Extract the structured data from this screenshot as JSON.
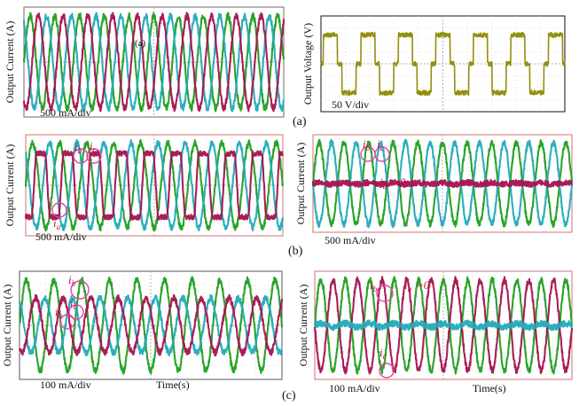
{
  "figure": {
    "labels": {
      "a": "(a)",
      "b": "(b)",
      "c": "(c)"
    },
    "ylabel_current": "Output Current (A)",
    "ylabel_voltage": "Output Voltage (V)",
    "xlabel_time": "Time(s)",
    "colors": {
      "green": "#1f9e1f",
      "cyan": "#22aab8",
      "magenta": "#a4124e",
      "olive": "#8c8a00",
      "annotation": "#c0143c",
      "circle": "#e048a8"
    }
  },
  "chart_data": [
    {
      "id": "a-current",
      "type": "line",
      "title": "",
      "ylabel": "Output Current (A)",
      "scale_label": "500 mA/div",
      "inner_label": "(a)",
      "annotations": [],
      "series": [
        {
          "name": "green",
          "color": "#1f9e1f",
          "amplitude": 1.0,
          "cycles": 10.5,
          "phase_deg": 0
        },
        {
          "name": "cyan",
          "color": "#22aab8",
          "amplitude": 1.0,
          "cycles": 10.5,
          "phase_deg": 120
        },
        {
          "name": "magenta",
          "color": "#a4124e",
          "amplitude": 1.0,
          "cycles": 10.5,
          "phase_deg": 240
        }
      ]
    },
    {
      "id": "a-voltage",
      "type": "line",
      "title": "",
      "ylabel": "Output Voltage (V)",
      "scale_label": "50 V/div",
      "annotations": [],
      "series": [
        {
          "name": "olive",
          "color": "#8c8a00",
          "shape": "quasi-square",
          "amplitude": 1.0,
          "cycles": 6.5
        }
      ]
    },
    {
      "id": "b-left",
      "type": "line",
      "title": "",
      "ylabel": "Output Current (A)",
      "scale_label": "500 mA/div",
      "annotations": [
        "i",
        "b",
        "i",
        "c",
        "i",
        "a"
      ],
      "series": [
        {
          "name": "green",
          "color": "#1f9e1f",
          "amplitude": 1.0,
          "cycles": 9.5,
          "phase_deg": 0
        },
        {
          "name": "cyan",
          "color": "#22aab8",
          "amplitude": 1.0,
          "cycles": 9.5,
          "phase_deg": 130
        },
        {
          "name": "magenta",
          "color": "#a4124e",
          "amplitude": 0.75,
          "cycles": 9.5,
          "phase_deg": 250,
          "shape": "distorted"
        }
      ]
    },
    {
      "id": "b-right",
      "type": "line",
      "title": "",
      "ylabel": "Output Current (A)",
      "scale_label": "500 mA/div",
      "annotations": [
        "i",
        "b",
        "i",
        "c",
        "i",
        "a",
        "=0"
      ],
      "series": [
        {
          "name": "green",
          "color": "#1f9e1f",
          "amplitude": 1.0,
          "cycles": 10.5,
          "phase_deg": 0
        },
        {
          "name": "cyan",
          "color": "#22aab8",
          "amplitude": 1.0,
          "cycles": 10.5,
          "phase_deg": 180
        },
        {
          "name": "magenta",
          "color": "#a4124e",
          "amplitude": 0.02,
          "cycles": 10.5,
          "phase_deg": 0
        }
      ]
    },
    {
      "id": "c-left",
      "type": "line",
      "title": "",
      "ylabel": "Output Current (A)",
      "scale_label": "100 mA/div",
      "xlabel": "Time(s)",
      "annotations": [
        "i",
        "b",
        "i",
        "c",
        "i",
        "a"
      ],
      "series": [
        {
          "name": "green",
          "color": "#1f9e1f",
          "amplitude": 1.0,
          "cycles": 9.5,
          "phase_deg": 0
        },
        {
          "name": "cyan",
          "color": "#22aab8",
          "amplitude": 0.6,
          "cycles": 9.5,
          "phase_deg": 120
        },
        {
          "name": "magenta",
          "color": "#a4124e",
          "amplitude": 0.6,
          "cycles": 9.5,
          "phase_deg": 240
        }
      ]
    },
    {
      "id": "c-right",
      "type": "line",
      "title": "",
      "ylabel": "Output Current (A)",
      "scale_label": "100 mA/div",
      "xlabel": "Time(s)",
      "annotations": [
        "i",
        "b",
        "i",
        "a",
        "=0",
        "i",
        "c"
      ],
      "series": [
        {
          "name": "green",
          "color": "#1f9e1f",
          "amplitude": 1.0,
          "cycles": 10.5,
          "phase_deg": 0
        },
        {
          "name": "magenta",
          "color": "#a4124e",
          "amplitude": 1.0,
          "cycles": 10.5,
          "phase_deg": 180
        },
        {
          "name": "cyan",
          "color": "#22aab8",
          "amplitude": 0.04,
          "cycles": 10.5,
          "phase_deg": 0
        }
      ]
    }
  ]
}
